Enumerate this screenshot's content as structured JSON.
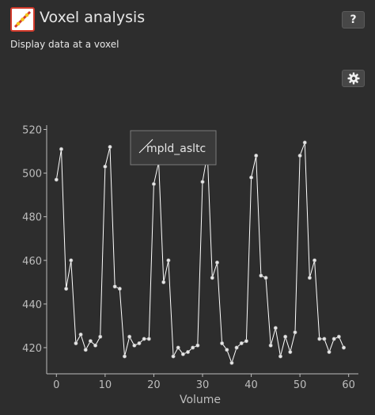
{
  "header": {
    "title": "Voxel analysis",
    "subtitle": "Display data at a voxel",
    "help_label": "?",
    "settings_icon": "gear-icon",
    "app_icon": "voxel-analysis-icon"
  },
  "colors": {
    "background": "#2d2d2d",
    "series_line": "#ffffff",
    "axis": "#bdbdbd",
    "app_icon_border": "#d23a2b",
    "app_icon_line": "#d23a2b",
    "app_icon_dots": "#f5c518"
  },
  "chart_data": {
    "type": "line",
    "xlabel": "Volume",
    "ylabel": "",
    "xlim": [
      -2,
      62
    ],
    "ylim": [
      408,
      522
    ],
    "xticks": [
      0,
      10,
      20,
      30,
      40,
      50,
      60
    ],
    "yticks": [
      420,
      440,
      460,
      480,
      500,
      520
    ],
    "grid": false,
    "legend_position": "top-center",
    "series": [
      {
        "name": "mpld_asltc",
        "color": "#ffffff",
        "x": [
          0,
          1,
          2,
          3,
          4,
          5,
          6,
          7,
          8,
          9,
          10,
          11,
          12,
          13,
          14,
          15,
          16,
          17,
          18,
          19,
          20,
          21,
          22,
          23,
          24,
          25,
          26,
          27,
          28,
          29,
          30,
          31,
          32,
          33,
          34,
          35,
          36,
          37,
          38,
          39,
          40,
          41,
          42,
          43,
          44,
          45,
          46,
          47,
          48,
          49,
          50,
          51,
          52,
          53,
          54,
          55,
          56,
          57,
          58,
          59
        ],
        "y": [
          497,
          511,
          447,
          460,
          422,
          426,
          419,
          423,
          421,
          425,
          503,
          512,
          448,
          447,
          416,
          425,
          421,
          422,
          424,
          424,
          495,
          505,
          450,
          460,
          416,
          420,
          417,
          418,
          420,
          421,
          496,
          509,
          452,
          459,
          422,
          419,
          413,
          420,
          422,
          423,
          498,
          508,
          453,
          452,
          421,
          429,
          416,
          425,
          418,
          427,
          508,
          514,
          452,
          460,
          424,
          424,
          418,
          424,
          425,
          420
        ]
      }
    ]
  }
}
